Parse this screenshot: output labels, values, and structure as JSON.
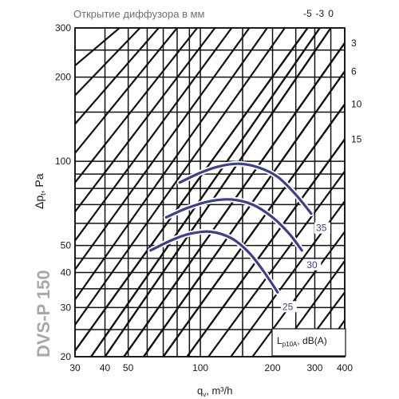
{
  "chart_data": {
    "type": "line",
    "title": "Открытие диффузора в мм",
    "model": "DVS-P 150",
    "xlabel": "q",
    "xlabel_sub": "v",
    "xlabel_unit": ", m³/h",
    "ylabel": "Δp",
    "ylabel_sub": "t",
    "ylabel_unit": ", Pa",
    "xscale": "log",
    "yscale": "log",
    "xlim": [
      30,
      400
    ],
    "ylim": [
      20,
      300
    ],
    "x_ticks": [
      30,
      40,
      50,
      100,
      200,
      300,
      400
    ],
    "y_ticks": [
      20,
      30,
      40,
      50,
      100,
      200,
      300
    ],
    "x_grid": [
      30,
      40,
      50,
      60,
      70,
      80,
      90,
      100,
      150,
      200,
      250,
      300,
      350,
      400
    ],
    "y_grid": [
      20,
      25,
      30,
      35,
      40,
      45,
      50,
      60,
      70,
      80,
      90,
      100,
      150,
      200,
      250,
      300
    ],
    "grid": true,
    "legend_box": "L_p10A, dB(A)",
    "legend_main": "L",
    "legend_sub": "p10A",
    "legend_unit": ", dB(A)",
    "opening_lines": [
      {
        "label": "-5",
        "points": [
          [
            30,
            21
          ],
          [
            280,
            300
          ]
        ]
      },
      {
        "label": "-3",
        "points": [
          [
            35,
            20
          ],
          [
            315,
            300
          ]
        ]
      },
      {
        "label": "0",
        "points": [
          [
            40,
            20
          ],
          [
            350,
            300
          ]
        ]
      },
      {
        "label": "3",
        "points": [
          [
            48,
            20
          ],
          [
            400,
            265
          ]
        ]
      },
      {
        "label": "6",
        "points": [
          [
            58,
            20
          ],
          [
            400,
            210
          ]
        ]
      },
      {
        "label": "10",
        "points": [
          [
            70,
            20
          ],
          [
            400,
            160
          ]
        ]
      },
      {
        "label": "15",
        "points": [
          [
            88,
            20
          ],
          [
            400,
            120
          ]
        ]
      }
    ],
    "opening_line_color": "#111111",
    "extra_lines": [
      {
        "points": [
          [
            30,
            26
          ],
          [
            225,
            300
          ]
        ]
      },
      {
        "points": [
          [
            30,
            32
          ],
          [
            190,
            300
          ]
        ]
      },
      {
        "points": [
          [
            30,
            41
          ],
          [
            160,
            300
          ]
        ]
      },
      {
        "points": [
          [
            30,
            52
          ],
          [
            135,
            300
          ]
        ]
      },
      {
        "points": [
          [
            30,
            66
          ],
          [
            115,
            300
          ]
        ]
      },
      {
        "points": [
          [
            30,
            84
          ],
          [
            97,
            300
          ]
        ]
      },
      {
        "points": [
          [
            30,
            107
          ],
          [
            80,
            300
          ]
        ]
      },
      {
        "points": [
          [
            30,
            136
          ],
          [
            67,
            300
          ]
        ]
      },
      {
        "points": [
          [
            30,
            172
          ],
          [
            56,
            300
          ]
        ]
      },
      {
        "points": [
          [
            30,
            220
          ],
          [
            46,
            300
          ]
        ]
      },
      {
        "points": [
          [
            108,
            20
          ],
          [
            400,
            92
          ]
        ]
      },
      {
        "points": [
          [
            134,
            20
          ],
          [
            400,
            72
          ]
        ]
      },
      {
        "points": [
          [
            165,
            20
          ],
          [
            400,
            56
          ]
        ]
      },
      {
        "points": [
          [
            205,
            20
          ],
          [
            400,
            44
          ]
        ]
      },
      {
        "points": [
          [
            252,
            20
          ],
          [
            400,
            34
          ]
        ]
      },
      {
        "points": [
          [
            312,
            20
          ],
          [
            400,
            27
          ]
        ]
      }
    ],
    "noise_series": [
      {
        "name": "25",
        "points": [
          [
            62,
            48
          ],
          [
            75,
            52
          ],
          [
            90,
            55
          ],
          [
            110,
            56
          ],
          [
            135,
            53
          ],
          [
            160,
            47
          ],
          [
            185,
            40
          ],
          [
            210,
            34
          ]
        ]
      },
      {
        "name": "30",
        "points": [
          [
            72,
            63
          ],
          [
            88,
            68
          ],
          [
            110,
            72
          ],
          [
            135,
            73
          ],
          [
            165,
            70
          ],
          [
            200,
            63
          ],
          [
            235,
            55
          ],
          [
            265,
            48
          ]
        ]
      },
      {
        "name": "35",
        "points": [
          [
            82,
            84
          ],
          [
            100,
            91
          ],
          [
            120,
            96
          ],
          [
            145,
            98
          ],
          [
            175,
            95
          ],
          [
            210,
            88
          ],
          [
            250,
            76
          ],
          [
            290,
            65
          ]
        ]
      }
    ],
    "noise_color": "#3c3f8f"
  }
}
